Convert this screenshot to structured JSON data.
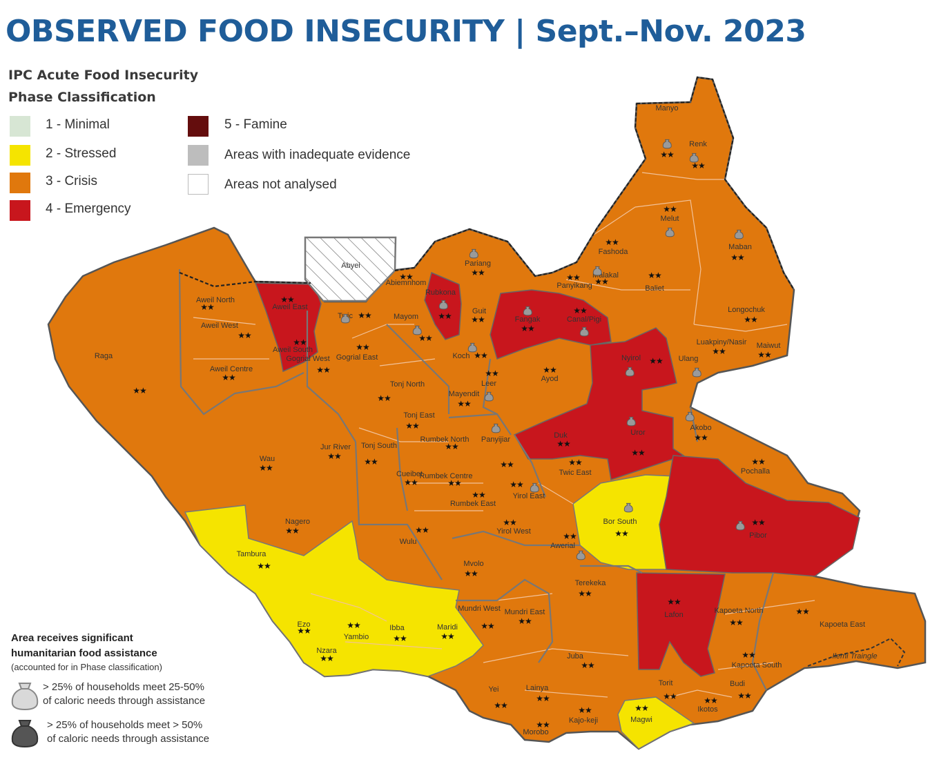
{
  "title": "OBSERVED FOOD INSECURITY | Sept.–Nov. 2023",
  "legend": {
    "title_line1": "IPC Acute Food Insecurity",
    "title_line2": "Phase Classification",
    "items": [
      {
        "label": "1 - Minimal",
        "color": "#d7e6d4"
      },
      {
        "label": "2 - Stressed",
        "color": "#f5e400"
      },
      {
        "label": "3 - Crisis",
        "color": "#e0780d"
      },
      {
        "label": "4 - Emergency",
        "color": "#c8161d"
      },
      {
        "label": "5 - Famine",
        "color": "#640d0d"
      },
      {
        "label": "Areas with inadequate evidence",
        "color": "#bdbdbd"
      },
      {
        "label": "Areas not analysed",
        "color": "#ffffff"
      }
    ]
  },
  "assistance": {
    "title_line1": "Area receives significant",
    "title_line2": "humanitarian food assistance",
    "subtitle": "(accounted for in Phase classification)",
    "light_line1": "> 25% of households meet 25-50%",
    "light_line2": "of caloric needs through assistance",
    "dark_line1": "> 25% of households meet > 50%",
    "dark_line2": "of caloric needs through assistance"
  },
  "phase_colors": {
    "crisis": "#e0780d",
    "stressed": "#f5e400",
    "emergency": "#c8161d"
  },
  "districts": [
    {
      "name": "Manyo",
      "phase": 3,
      "stars": true,
      "assist": "light"
    },
    {
      "name": "Renk",
      "phase": 3,
      "stars": true,
      "assist": "light"
    },
    {
      "name": "Melut",
      "phase": 3,
      "stars": true,
      "assist": "light"
    },
    {
      "name": "Maban",
      "phase": 3,
      "stars": true,
      "assist": "light"
    },
    {
      "name": "Fashoda",
      "phase": 3,
      "stars": true,
      "assist": "none"
    },
    {
      "name": "Pariang",
      "phase": 3,
      "stars": true,
      "assist": "light"
    },
    {
      "name": "Malakal",
      "phase": 3,
      "stars": true,
      "assist": "light"
    },
    {
      "name": "Panyikang",
      "phase": 3,
      "stars": true,
      "assist": "none"
    },
    {
      "name": "Baliet",
      "phase": 3,
      "stars": true,
      "assist": "none"
    },
    {
      "name": "Abyei",
      "phase": 0,
      "stars": false,
      "assist": "none"
    },
    {
      "name": "Abiemnhom",
      "phase": 3,
      "stars": true,
      "assist": "none"
    },
    {
      "name": "Rubkona",
      "phase": 4,
      "stars": true,
      "assist": "light"
    },
    {
      "name": "Guit",
      "phase": 3,
      "stars": true,
      "assist": "none"
    },
    {
      "name": "Fangak",
      "phase": 4,
      "stars": true,
      "assist": "light"
    },
    {
      "name": "Canal/Pigi",
      "phase": 4,
      "stars": true,
      "assist": "light"
    },
    {
      "name": "Longochuk",
      "phase": 3,
      "stars": true,
      "assist": "none"
    },
    {
      "name": "Aweil North",
      "phase": 3,
      "stars": true,
      "assist": "none"
    },
    {
      "name": "Aweil East",
      "phase": 4,
      "stars": true,
      "assist": "none"
    },
    {
      "name": "Twic",
      "phase": 3,
      "stars": true,
      "assist": "light"
    },
    {
      "name": "Mayom",
      "phase": 3,
      "stars": true,
      "assist": "light"
    },
    {
      "name": "Aweil West",
      "phase": 3,
      "stars": true,
      "assist": "none"
    },
    {
      "name": "Aweil South",
      "phase": 4,
      "stars": true,
      "assist": "none"
    },
    {
      "name": "Gogrial West",
      "phase": 3,
      "stars": true,
      "assist": "none"
    },
    {
      "name": "Gogrial East",
      "phase": 3,
      "stars": true,
      "assist": "none"
    },
    {
      "name": "Koch",
      "phase": 3,
      "stars": true,
      "assist": "light"
    },
    {
      "name": "Luakpiny/Nasir",
      "phase": 3,
      "stars": true,
      "assist": "none"
    },
    {
      "name": "Maiwut",
      "phase": 3,
      "stars": true,
      "assist": "none"
    },
    {
      "name": "Ulang",
      "phase": 3,
      "stars": false,
      "assist": "light"
    },
    {
      "name": "Nyirol",
      "phase": 4,
      "stars": true,
      "assist": "light"
    },
    {
      "name": "Raga",
      "phase": 3,
      "stars": true,
      "assist": "none"
    },
    {
      "name": "Aweil Centre",
      "phase": 3,
      "stars": true,
      "assist": "none"
    },
    {
      "name": "Leer",
      "phase": 3,
      "stars": true,
      "assist": "none"
    },
    {
      "name": "Ayod",
      "phase": 3,
      "stars": true,
      "assist": "none"
    },
    {
      "name": "Tonj North",
      "phase": 3,
      "stars": true,
      "assist": "none"
    },
    {
      "name": "Mayendit",
      "phase": 3,
      "stars": true,
      "assist": "light"
    },
    {
      "name": "Tonj East",
      "phase": 3,
      "stars": true,
      "assist": "none"
    },
    {
      "name": "Akobo",
      "phase": 3,
      "stars": true,
      "assist": "light"
    },
    {
      "name": "Duk",
      "phase": 4,
      "stars": true,
      "assist": "none"
    },
    {
      "name": "Uror",
      "phase": 4,
      "stars": true,
      "assist": "light"
    },
    {
      "name": "Rumbek North",
      "phase": 3,
      "stars": true,
      "assist": "none"
    },
    {
      "name": "Panyijiar",
      "phase": 3,
      "stars": true,
      "assist": "light"
    },
    {
      "name": "Jur River",
      "phase": 3,
      "stars": true,
      "assist": "none"
    },
    {
      "name": "Tonj South",
      "phase": 3,
      "stars": true,
      "assist": "none"
    },
    {
      "name": "Wau",
      "phase": 3,
      "stars": true,
      "assist": "none"
    },
    {
      "name": "Pochalla",
      "phase": 3,
      "stars": true,
      "assist": "none"
    },
    {
      "name": "Cueibet",
      "phase": 3,
      "stars": true,
      "assist": "none"
    },
    {
      "name": "Rumbek Centre",
      "phase": 3,
      "stars": true,
      "assist": "none"
    },
    {
      "name": "Twic East",
      "phase": 3,
      "stars": true,
      "assist": "none"
    },
    {
      "name": "Yirol East",
      "phase": 3,
      "stars": true,
      "assist": "light"
    },
    {
      "name": "Rumbek East",
      "phase": 3,
      "stars": true,
      "assist": "none"
    },
    {
      "name": "Bor South",
      "phase": 2,
      "stars": true,
      "assist": "light"
    },
    {
      "name": "Pibor",
      "phase": 4,
      "stars": true,
      "assist": "light"
    },
    {
      "name": "Nagero",
      "phase": 3,
      "stars": true,
      "assist": "none"
    },
    {
      "name": "Yirol West",
      "phase": 3,
      "stars": true,
      "assist": "none"
    },
    {
      "name": "Wulu",
      "phase": 3,
      "stars": true,
      "assist": "none"
    },
    {
      "name": "Awerial",
      "phase": 3,
      "stars": true,
      "assist": "light"
    },
    {
      "name": "Tambura",
      "phase": 2,
      "stars": true,
      "assist": "none"
    },
    {
      "name": "Mvolo",
      "phase": 3,
      "stars": true,
      "assist": "none"
    },
    {
      "name": "Terekeka",
      "phase": 3,
      "stars": true,
      "assist": "none"
    },
    {
      "name": "Lafon",
      "phase": 4,
      "stars": true,
      "assist": "none"
    },
    {
      "name": "Kapoeta North",
      "phase": 3,
      "stars": true,
      "assist": "none"
    },
    {
      "name": "Kapoeta East",
      "phase": 3,
      "stars": true,
      "assist": "none"
    },
    {
      "name": "Mundri West",
      "phase": 3,
      "stars": true,
      "assist": "none"
    },
    {
      "name": "Mundri East",
      "phase": 3,
      "stars": true,
      "assist": "none"
    },
    {
      "name": "Ezo",
      "phase": 2,
      "stars": true,
      "assist": "none"
    },
    {
      "name": "Yambio",
      "phase": 2,
      "stars": true,
      "assist": "none"
    },
    {
      "name": "Ibba",
      "phase": 2,
      "stars": true,
      "assist": "none"
    },
    {
      "name": "Maridi",
      "phase": 2,
      "stars": true,
      "assist": "none"
    },
    {
      "name": "Nzara",
      "phase": 2,
      "stars": true,
      "assist": "none"
    },
    {
      "name": "Juba",
      "phase": 3,
      "stars": true,
      "assist": "none"
    },
    {
      "name": "Kapoeta South",
      "phase": 3,
      "stars": true,
      "assist": "none"
    },
    {
      "name": "Ilemi Traingle",
      "phase": 0,
      "stars": false,
      "assist": "none"
    },
    {
      "name": "Yei",
      "phase": 3,
      "stars": true,
      "assist": "none"
    },
    {
      "name": "Lainya",
      "phase": 3,
      "stars": true,
      "assist": "none"
    },
    {
      "name": "Torit",
      "phase": 3,
      "stars": true,
      "assist": "none"
    },
    {
      "name": "Budi",
      "phase": 3,
      "stars": true,
      "assist": "none"
    },
    {
      "name": "Ikotos",
      "phase": 3,
      "stars": true,
      "assist": "none"
    },
    {
      "name": "Kajo-keji",
      "phase": 3,
      "stars": true,
      "assist": "none"
    },
    {
      "name": "Magwi",
      "phase": 2,
      "stars": true,
      "assist": "none"
    },
    {
      "name": "Morobo",
      "phase": 3,
      "stars": true,
      "assist": "none"
    }
  ]
}
